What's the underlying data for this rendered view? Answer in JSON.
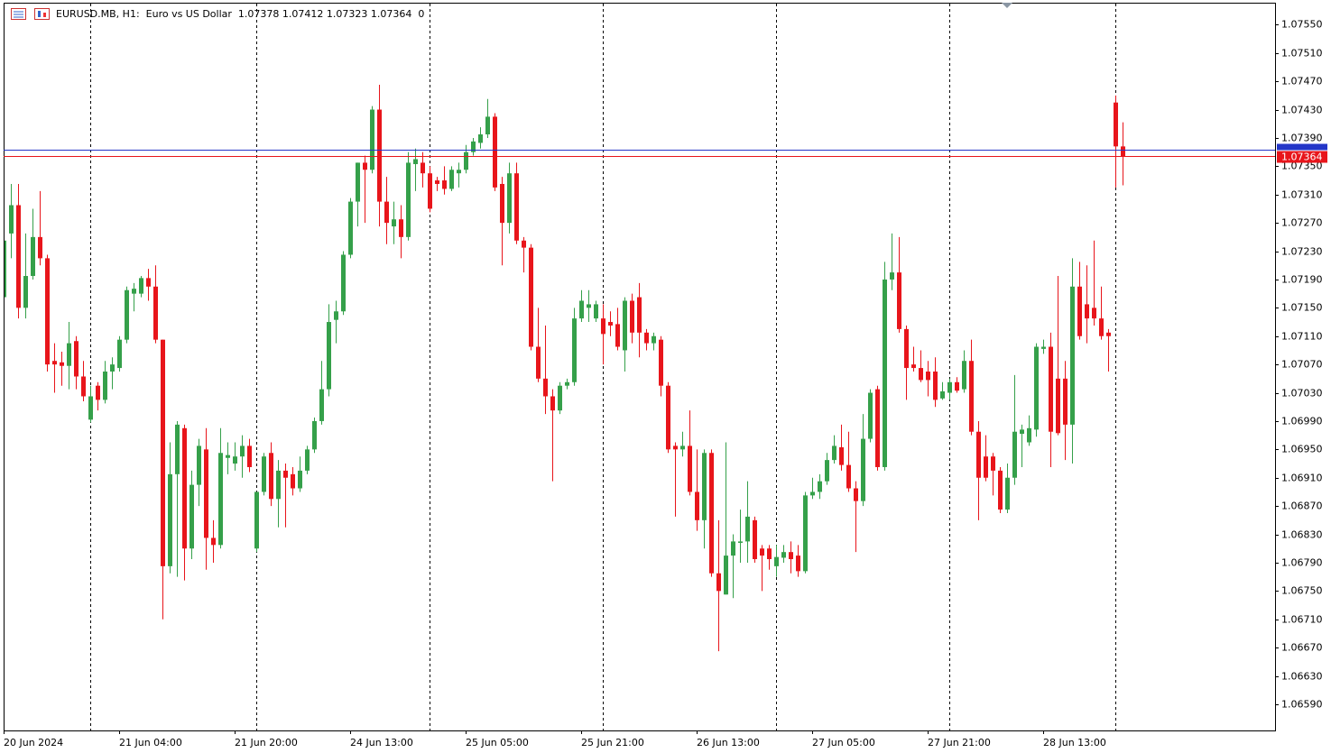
{
  "chart_data": {
    "type": "candlestick",
    "title": "EURUSD.MB, H1:  Euro vs US Dollar  1.07378 1.07412 1.07323 1.07364  0",
    "categories": [
      "20 Jun 2024",
      null,
      null,
      null,
      null,
      null,
      null,
      null,
      null,
      null,
      null,
      null,
      null,
      null,
      null,
      null,
      "21 Jun 04:00",
      null,
      null,
      null,
      null,
      null,
      null,
      null,
      null,
      null,
      null,
      null,
      null,
      null,
      null,
      null,
      "21 Jun 20:00",
      null,
      null,
      null,
      null,
      null,
      null,
      null,
      null,
      null,
      null,
      null,
      null,
      null,
      null,
      null,
      "24 Jun 13:00",
      null,
      null,
      null,
      null,
      null,
      null,
      null,
      null,
      null,
      null,
      null,
      null,
      null,
      null,
      null,
      "25 Jun 05:00",
      null,
      null,
      null,
      null,
      null,
      null,
      null,
      null,
      null,
      null,
      null,
      null,
      null,
      null,
      null,
      "25 Jun 21:00",
      null,
      null,
      null,
      null,
      null,
      null,
      null,
      null,
      null,
      null,
      null,
      null,
      null,
      null,
      null,
      "26 Jun 13:00",
      null,
      null,
      null,
      null,
      null,
      null,
      null,
      null,
      null,
      null,
      null,
      null,
      null,
      null,
      null,
      "27 Jun 05:00",
      null,
      null,
      null,
      null,
      null,
      null,
      null,
      null,
      null,
      null,
      null,
      null,
      null,
      null,
      null,
      "27 Jun 21:00",
      null,
      null,
      null,
      null,
      null,
      null,
      null,
      null,
      null,
      null,
      null,
      null,
      null,
      null,
      null,
      "28 Jun 13:00",
      null,
      null,
      null,
      null,
      null,
      null,
      null,
      null,
      null,
      null,
      null
    ],
    "open": [
      1.07165,
      1.07255,
      1.07295,
      1.0715,
      1.07195,
      1.0725,
      1.0722,
      1.07075,
      1.07073,
      1.07068,
      1.07103,
      1.07053,
      1.06992,
      1.0704,
      1.0702,
      1.0706,
      1.07065,
      1.07105,
      1.0717,
      1.0717,
      1.07192,
      1.0718,
      1.07105,
      1.06785,
      1.06915,
      1.0698,
      1.0681,
      1.069,
      1.0695,
      1.06825,
      1.06815,
      1.06938,
      1.0693,
      1.0694,
      1.06955,
      1.0681,
      1.0689,
      1.06945,
      1.0688,
      1.0692,
      1.06915,
      1.06895,
      1.0692,
      1.0695,
      1.0699,
      1.07035,
      1.07133,
      1.07145,
      1.07225,
      1.073,
      1.07355,
      1.07345,
      1.0743,
      1.073,
      1.07265,
      1.07275,
      1.0725,
      1.07353,
      1.07355,
      1.0734,
      1.0733,
      1.0733,
      1.07318,
      1.0734,
      1.07345,
      1.0737,
      1.07383,
      1.07395,
      1.0742,
      1.07325,
      1.0727,
      1.0734,
      1.07245,
      1.07235,
      1.07095,
      1.0705,
      1.07025,
      1.07005,
      1.0704,
      1.07045,
      1.07135,
      1.0715,
      1.07135,
      1.07135,
      1.0713,
      1.07127,
      1.0709,
      1.0716,
      1.07165,
      1.07115,
      1.071,
      1.07105,
      1.0704,
      1.06955,
      1.0695,
      1.06955,
      1.0689,
      1.0685,
      1.06945,
      1.06775,
      1.06745,
      1.068,
      1.06818,
      1.0682,
      1.0685,
      1.0681,
      1.0681,
      1.06785,
      1.06797,
      1.06805,
      1.068,
      1.06778,
      1.06885,
      1.0689,
      1.06905,
      1.06935,
      1.06953,
      1.06928,
      1.06895,
      1.06877,
      1.06965,
      1.07035,
      1.06925,
      1.0719,
      1.072,
      1.0712,
      1.0707,
      1.07065,
      1.0706,
      1.0706,
      1.07022,
      1.0703,
      1.07045,
      1.07035,
      1.07075,
      1.06975,
      1.0694,
      1.0694,
      1.0692,
      1.06865,
      1.0691,
      1.06972,
      1.0696,
      1.06978,
      1.07092,
      1.07095,
      1.0705,
      1.0705,
      1.06985,
      1.0718,
      1.07155,
      1.0715,
      1.07135,
      1.07115,
      1.0744,
      1.07378
    ],
    "high": [
      1.07265,
      1.07325,
      1.07325,
      1.07255,
      1.0729,
      1.07315,
      1.07225,
      1.071,
      1.07088,
      1.0713,
      1.0711,
      1.07075,
      1.0704,
      1.07045,
      1.07075,
      1.0708,
      1.0711,
      1.0718,
      1.07185,
      1.07195,
      1.07205,
      1.0721,
      1.07105,
      1.0696,
      1.0699,
      1.06985,
      1.0692,
      1.06965,
      1.0698,
      1.0685,
      1.0698,
      1.0696,
      1.0696,
      1.0697,
      1.06965,
      1.0689,
      1.06945,
      1.0696,
      1.06935,
      1.0693,
      1.06925,
      1.0694,
      1.06955,
      1.06995,
      1.07075,
      1.07155,
      1.0716,
      1.0723,
      1.07305,
      1.07355,
      1.07365,
      1.07435,
      1.07465,
      1.07335,
      1.073,
      1.07295,
      1.0737,
      1.07375,
      1.0737,
      1.0735,
      1.07335,
      1.0735,
      1.0735,
      1.07355,
      1.0738,
      1.0739,
      1.07405,
      1.07445,
      1.07425,
      1.07335,
      1.07355,
      1.07355,
      1.0725,
      1.0724,
      1.0715,
      1.07125,
      1.07035,
      1.07045,
      1.0705,
      1.0715,
      1.07175,
      1.07175,
      1.0716,
      1.07155,
      1.07145,
      1.0715,
      1.07165,
      1.0717,
      1.07185,
      1.0712,
      1.07115,
      1.0711,
      1.07045,
      1.0696,
      1.06975,
      1.07005,
      1.0695,
      1.0695,
      1.0695,
      1.0685,
      1.0696,
      1.0683,
      1.06865,
      1.06905,
      1.06855,
      1.06815,
      1.06815,
      1.06815,
      1.06815,
      1.0682,
      1.06815,
      1.0689,
      1.0691,
      1.06915,
      1.06945,
      1.0697,
      1.06985,
      1.06975,
      1.06905,
      1.07,
      1.07035,
      1.0704,
      1.07215,
      1.07255,
      1.0725,
      1.07125,
      1.07095,
      1.0709,
      1.07075,
      1.0708,
      1.07045,
      1.0705,
      1.07052,
      1.0709,
      1.07105,
      1.0699,
      1.0697,
      1.06945,
      1.06925,
      1.0693,
      1.07055,
      1.06985,
      1.06998,
      1.071,
      1.07105,
      1.07115,
      1.07195,
      1.07075,
      1.0722,
      1.07215,
      1.0721,
      1.07245,
      1.0718,
      1.0712,
      1.0745,
      1.07412
    ],
    "low": [
      1.0716,
      1.0722,
      1.07135,
      1.07135,
      1.0719,
      1.0721,
      1.0706,
      1.0703,
      1.0704,
      1.07035,
      1.07035,
      1.07018,
      1.06988,
      1.07005,
      1.07015,
      1.07035,
      1.0706,
      1.071,
      1.07145,
      1.07165,
      1.0716,
      1.071,
      1.0671,
      1.06775,
      1.0677,
      1.06765,
      1.06795,
      1.0687,
      1.0678,
      1.0679,
      1.0681,
      1.06915,
      1.0692,
      1.0691,
      1.06918,
      1.06805,
      1.06885,
      1.0687,
      1.0684,
      1.0684,
      1.06885,
      1.0689,
      1.06915,
      1.06945,
      1.06985,
      1.07025,
      1.071,
      1.0714,
      1.0722,
      1.07265,
      1.0727,
      1.0734,
      1.07265,
      1.0724,
      1.0724,
      1.0722,
      1.07245,
      1.07315,
      1.0732,
      1.07285,
      1.07315,
      1.0731,
      1.07315,
      1.0732,
      1.0734,
      1.07365,
      1.07375,
      1.0739,
      1.07315,
      1.0721,
      1.07255,
      1.0724,
      1.072,
      1.0709,
      1.07045,
      1.07,
      1.06905,
      1.07,
      1.07035,
      1.0704,
      1.0713,
      1.0713,
      1.0713,
      1.0707,
      1.0711,
      1.0709,
      1.0706,
      1.071,
      1.0708,
      1.0709,
      1.0709,
      1.07025,
      1.06945,
      1.06855,
      1.0694,
      1.06885,
      1.06835,
      1.0681,
      1.0677,
      1.06665,
      1.06745,
      1.0674,
      1.0679,
      1.0679,
      1.0679,
      1.0675,
      1.0678,
      1.0677,
      1.0679,
      1.06775,
      1.0677,
      1.06775,
      1.0688,
      1.0688,
      1.069,
      1.0693,
      1.0692,
      1.0689,
      1.06805,
      1.0687,
      1.0696,
      1.0692,
      1.0692,
      1.07175,
      1.07115,
      1.0702,
      1.0706,
      1.07045,
      1.07025,
      1.0701,
      1.0702,
      1.0702,
      1.0703,
      1.0703,
      1.0697,
      1.0685,
      1.06905,
      1.06885,
      1.0686,
      1.0686,
      1.069,
      1.06925,
      1.06955,
      1.06968,
      1.07085,
      1.06925,
      1.0697,
      1.06935,
      1.0693,
      1.07105,
      1.071,
      1.07125,
      1.07105,
      1.0706,
      1.0732,
      1.07323
    ],
    "close": [
      1.07245,
      1.07295,
      1.0715,
      1.07195,
      1.0725,
      1.0722,
      1.0707,
      1.0707,
      1.07068,
      1.071,
      1.07053,
      1.07025,
      1.07025,
      1.0702,
      1.0706,
      1.0707,
      1.07105,
      1.07175,
      1.07177,
      1.07192,
      1.0718,
      1.07105,
      1.06785,
      1.06915,
      1.06985,
      1.0681,
      1.069,
      1.06955,
      1.06825,
      1.06815,
      1.06945,
      1.06942,
      1.0694,
      1.06955,
      1.06925,
      1.0689,
      1.0694,
      1.0688,
      1.0692,
      1.0691,
      1.06895,
      1.0692,
      1.0695,
      1.0699,
      1.07035,
      1.0713,
      1.07145,
      1.07225,
      1.073,
      1.07355,
      1.07345,
      1.0743,
      1.073,
      1.0727,
      1.07275,
      1.0725,
      1.07355,
      1.0736,
      1.0734,
      1.0729,
      1.07325,
      1.07318,
      1.07345,
      1.07345,
      1.0737,
      1.07385,
      1.07395,
      1.0742,
      1.0732,
      1.0727,
      1.0734,
      1.07245,
      1.07235,
      1.07095,
      1.0705,
      1.07025,
      1.07005,
      1.0704,
      1.07045,
      1.07135,
      1.0716,
      1.07155,
      1.07155,
      1.07113,
      1.07125,
      1.07095,
      1.0716,
      1.07115,
      1.07115,
      1.071,
      1.0711,
      1.0704,
      1.0695,
      1.0695,
      1.06955,
      1.0689,
      1.0685,
      1.06945,
      1.06775,
      1.0675,
      1.068,
      1.0682,
      1.0682,
      1.06855,
      1.06795,
      1.068,
      1.06795,
      1.06798,
      1.06805,
      1.06795,
      1.06778,
      1.06885,
      1.0689,
      1.06905,
      1.06935,
      1.06955,
      1.06928,
      1.06895,
      1.06877,
      1.06965,
      1.0703,
      1.06925,
      1.0719,
      1.072,
      1.0712,
      1.07065,
      1.07065,
      1.07048,
      1.07048,
      1.0702,
      1.07032,
      1.07045,
      1.07033,
      1.07075,
      1.06975,
      1.0691,
      1.0691,
      1.0692,
      1.06865,
      1.0691,
      1.06975,
      1.06978,
      1.0698,
      1.07095,
      1.07095,
      1.06975,
      1.06973,
      1.06985,
      1.0718,
      1.0711,
      1.07135,
      1.07135,
      1.0711,
      1.0711,
      1.07378,
      1.07364
    ],
    "up_color": "#35a04a",
    "down_color": "#e8151b",
    "bid": 1.07364,
    "bid_color": "#e8151b",
    "ask": 1.07373,
    "ask_color": "#2436c8",
    "ylim": [
      1.06553,
      1.07581
    ],
    "yticks": [
      {
        "value": 1.0755,
        "label": "1.07550"
      },
      {
        "value": 1.0751,
        "label": "1.07510"
      },
      {
        "value": 1.0747,
        "label": "1.07470"
      },
      {
        "value": 1.0743,
        "label": "1.07430"
      },
      {
        "value": 1.0739,
        "label": "1.07390"
      },
      {
        "value": 1.0735,
        "label": "1.07350"
      },
      {
        "value": 1.0731,
        "label": "1.07310"
      },
      {
        "value": 1.0727,
        "label": "1.07270"
      },
      {
        "value": 1.0723,
        "label": "1.07230"
      },
      {
        "value": 1.0719,
        "label": "1.07190"
      },
      {
        "value": 1.0715,
        "label": "1.07150"
      },
      {
        "value": 1.0711,
        "label": "1.07110"
      },
      {
        "value": 1.0707,
        "label": "1.07070"
      },
      {
        "value": 1.0703,
        "label": "1.07030"
      },
      {
        "value": 1.0699,
        "label": "1.06990"
      },
      {
        "value": 1.0695,
        "label": "1.06950"
      },
      {
        "value": 1.0691,
        "label": "1.06910"
      },
      {
        "value": 1.0687,
        "label": "1.06870"
      },
      {
        "value": 1.0683,
        "label": "1.06830"
      },
      {
        "value": 1.0679,
        "label": "1.06790"
      },
      {
        "value": 1.0675,
        "label": "1.06750"
      },
      {
        "value": 1.0671,
        "label": "1.06710"
      },
      {
        "value": 1.0667,
        "label": "1.06670"
      },
      {
        "value": 1.0663,
        "label": "1.06630"
      },
      {
        "value": 1.0659,
        "label": "1.06590"
      }
    ]
  }
}
